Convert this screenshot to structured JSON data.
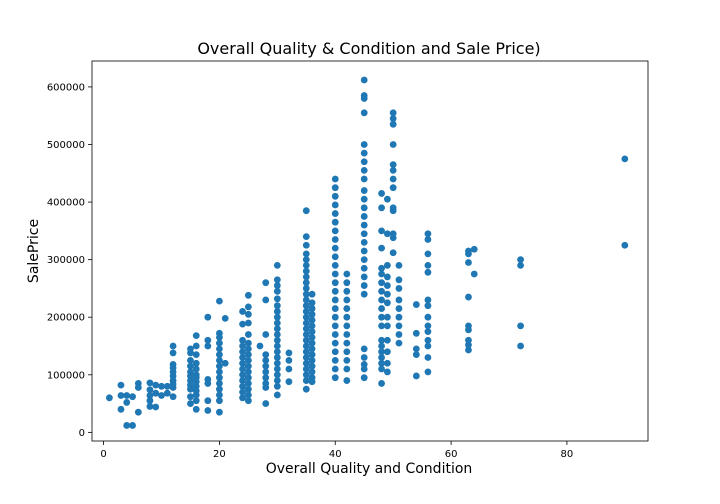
{
  "chart_data": {
    "type": "scatter",
    "title": "Overall Quality & Condition and Sale Price)",
    "xlabel": "Overall Quality and Condition",
    "ylabel": "SalePrice",
    "xlim": [
      -2,
      94
    ],
    "ylim": [
      -15000,
      645000
    ],
    "xticks": [
      0,
      20,
      40,
      60,
      80
    ],
    "yticks": [
      0,
      100000,
      200000,
      300000,
      400000,
      500000,
      600000
    ],
    "grid": false,
    "color": "#1f77b4",
    "points": [
      [
        1,
        60000
      ],
      [
        3,
        82000
      ],
      [
        3,
        64000
      ],
      [
        3,
        40000
      ],
      [
        4,
        64000
      ],
      [
        4,
        52000
      ],
      [
        4,
        12000
      ],
      [
        5,
        62000
      ],
      [
        5,
        12000
      ],
      [
        6,
        85000
      ],
      [
        6,
        78000
      ],
      [
        6,
        35000
      ],
      [
        8,
        86000
      ],
      [
        8,
        74000
      ],
      [
        8,
        64000
      ],
      [
        8,
        55000
      ],
      [
        8,
        45000
      ],
      [
        9,
        82000
      ],
      [
        9,
        68000
      ],
      [
        9,
        44000
      ],
      [
        10,
        80000
      ],
      [
        10,
        64000
      ],
      [
        11,
        80000
      ],
      [
        11,
        68000
      ],
      [
        12,
        150000
      ],
      [
        12,
        138000
      ],
      [
        12,
        118000
      ],
      [
        12,
        112000
      ],
      [
        12,
        105000
      ],
      [
        12,
        98000
      ],
      [
        12,
        90000
      ],
      [
        12,
        84000
      ],
      [
        12,
        78000
      ],
      [
        12,
        62000
      ],
      [
        15,
        145000
      ],
      [
        15,
        138000
      ],
      [
        15,
        125000
      ],
      [
        15,
        115000
      ],
      [
        15,
        105000
      ],
      [
        15,
        98000
      ],
      [
        15,
        90000
      ],
      [
        15,
        82000
      ],
      [
        15,
        75000
      ],
      [
        15,
        62000
      ],
      [
        15,
        50000
      ],
      [
        16,
        168000
      ],
      [
        16,
        150000
      ],
      [
        16,
        135000
      ],
      [
        16,
        120000
      ],
      [
        16,
        110000
      ],
      [
        16,
        100000
      ],
      [
        16,
        95000
      ],
      [
        16,
        88000
      ],
      [
        16,
        80000
      ],
      [
        16,
        72000
      ],
      [
        16,
        65000
      ],
      [
        16,
        55000
      ],
      [
        16,
        40000
      ],
      [
        18,
        200000
      ],
      [
        18,
        160000
      ],
      [
        18,
        150000
      ],
      [
        18,
        92000
      ],
      [
        18,
        85000
      ],
      [
        18,
        55000
      ],
      [
        18,
        38000
      ],
      [
        20,
        228000
      ],
      [
        20,
        172000
      ],
      [
        20,
        165000
      ],
      [
        20,
        155000
      ],
      [
        20,
        145000
      ],
      [
        20,
        135000
      ],
      [
        20,
        125000
      ],
      [
        20,
        115000
      ],
      [
        20,
        105000
      ],
      [
        20,
        95000
      ],
      [
        20,
        85000
      ],
      [
        20,
        75000
      ],
      [
        20,
        65000
      ],
      [
        20,
        55000
      ],
      [
        20,
        35000
      ],
      [
        21,
        198000
      ],
      [
        21,
        120000
      ],
      [
        24,
        210000
      ],
      [
        24,
        188000
      ],
      [
        24,
        160000
      ],
      [
        24,
        150000
      ],
      [
        24,
        140000
      ],
      [
        24,
        130000
      ],
      [
        24,
        120000
      ],
      [
        24,
        110000
      ],
      [
        24,
        100000
      ],
      [
        24,
        90000
      ],
      [
        24,
        80000
      ],
      [
        24,
        70000
      ],
      [
        24,
        60000
      ],
      [
        25,
        238000
      ],
      [
        25,
        218000
      ],
      [
        25,
        205000
      ],
      [
        25,
        190000
      ],
      [
        25,
        170000
      ],
      [
        25,
        155000
      ],
      [
        25,
        145000
      ],
      [
        25,
        135000
      ],
      [
        25,
        125000
      ],
      [
        25,
        115000
      ],
      [
        25,
        105000
      ],
      [
        25,
        95000
      ],
      [
        25,
        85000
      ],
      [
        25,
        75000
      ],
      [
        25,
        65000
      ],
      [
        25,
        55000
      ],
      [
        27,
        150000
      ],
      [
        28,
        260000
      ],
      [
        28,
        230000
      ],
      [
        28,
        170000
      ],
      [
        28,
        135000
      ],
      [
        28,
        125000
      ],
      [
        28,
        115000
      ],
      [
        28,
        105000
      ],
      [
        28,
        95000
      ],
      [
        28,
        85000
      ],
      [
        28,
        78000
      ],
      [
        28,
        50000
      ],
      [
        30,
        290000
      ],
      [
        30,
        265000
      ],
      [
        30,
        255000
      ],
      [
        30,
        245000
      ],
      [
        30,
        232000
      ],
      [
        30,
        220000
      ],
      [
        30,
        210000
      ],
      [
        30,
        200000
      ],
      [
        30,
        190000
      ],
      [
        30,
        180000
      ],
      [
        30,
        170000
      ],
      [
        30,
        160000
      ],
      [
        30,
        150000
      ],
      [
        30,
        140000
      ],
      [
        30,
        130000
      ],
      [
        30,
        120000
      ],
      [
        30,
        110000
      ],
      [
        30,
        100000
      ],
      [
        30,
        90000
      ],
      [
        30,
        80000
      ],
      [
        30,
        65000
      ],
      [
        32,
        138000
      ],
      [
        32,
        125000
      ],
      [
        32,
        110000
      ],
      [
        32,
        88000
      ],
      [
        35,
        385000
      ],
      [
        35,
        340000
      ],
      [
        35,
        325000
      ],
      [
        35,
        310000
      ],
      [
        35,
        300000
      ],
      [
        35,
        290000
      ],
      [
        35,
        280000
      ],
      [
        35,
        270000
      ],
      [
        35,
        260000
      ],
      [
        35,
        250000
      ],
      [
        35,
        240000
      ],
      [
        35,
        230000
      ],
      [
        35,
        220000
      ],
      [
        35,
        210000
      ],
      [
        35,
        200000
      ],
      [
        35,
        190000
      ],
      [
        35,
        180000
      ],
      [
        35,
        170000
      ],
      [
        35,
        160000
      ],
      [
        35,
        150000
      ],
      [
        35,
        140000
      ],
      [
        35,
        130000
      ],
      [
        35,
        120000
      ],
      [
        35,
        110000
      ],
      [
        35,
        100000
      ],
      [
        35,
        90000
      ],
      [
        35,
        75000
      ],
      [
        36,
        240000
      ],
      [
        36,
        225000
      ],
      [
        36,
        215000
      ],
      [
        36,
        205000
      ],
      [
        36,
        195000
      ],
      [
        36,
        185000
      ],
      [
        36,
        175000
      ],
      [
        36,
        165000
      ],
      [
        36,
        155000
      ],
      [
        36,
        145000
      ],
      [
        36,
        135000
      ],
      [
        36,
        125000
      ],
      [
        36,
        115000
      ],
      [
        36,
        105000
      ],
      [
        36,
        95000
      ],
      [
        36,
        88000
      ],
      [
        40,
        440000
      ],
      [
        40,
        425000
      ],
      [
        40,
        410000
      ],
      [
        40,
        395000
      ],
      [
        40,
        380000
      ],
      [
        40,
        365000
      ],
      [
        40,
        350000
      ],
      [
        40,
        335000
      ],
      [
        40,
        320000
      ],
      [
        40,
        305000
      ],
      [
        40,
        290000
      ],
      [
        40,
        275000
      ],
      [
        40,
        260000
      ],
      [
        40,
        245000
      ],
      [
        40,
        230000
      ],
      [
        40,
        215000
      ],
      [
        40,
        200000
      ],
      [
        40,
        185000
      ],
      [
        40,
        170000
      ],
      [
        40,
        155000
      ],
      [
        40,
        140000
      ],
      [
        40,
        125000
      ],
      [
        40,
        110000
      ],
      [
        40,
        95000
      ],
      [
        42,
        275000
      ],
      [
        42,
        260000
      ],
      [
        42,
        245000
      ],
      [
        42,
        230000
      ],
      [
        42,
        215000
      ],
      [
        42,
        200000
      ],
      [
        42,
        185000
      ],
      [
        42,
        170000
      ],
      [
        42,
        155000
      ],
      [
        42,
        140000
      ],
      [
        42,
        125000
      ],
      [
        42,
        110000
      ],
      [
        42,
        90000
      ],
      [
        45,
        612000
      ],
      [
        45,
        585000
      ],
      [
        45,
        580000
      ],
      [
        45,
        555000
      ],
      [
        45,
        500000
      ],
      [
        45,
        485000
      ],
      [
        45,
        470000
      ],
      [
        45,
        455000
      ],
      [
        45,
        440000
      ],
      [
        45,
        420000
      ],
      [
        45,
        405000
      ],
      [
        45,
        390000
      ],
      [
        45,
        375000
      ],
      [
        45,
        360000
      ],
      [
        45,
        345000
      ],
      [
        45,
        330000
      ],
      [
        45,
        315000
      ],
      [
        45,
        300000
      ],
      [
        45,
        285000
      ],
      [
        45,
        270000
      ],
      [
        45,
        255000
      ],
      [
        45,
        240000
      ],
      [
        45,
        145000
      ],
      [
        45,
        130000
      ],
      [
        45,
        118000
      ],
      [
        45,
        110000
      ],
      [
        45,
        95000
      ],
      [
        48,
        415000
      ],
      [
        48,
        390000
      ],
      [
        48,
        350000
      ],
      [
        48,
        320000
      ],
      [
        48,
        285000
      ],
      [
        48,
        275000
      ],
      [
        48,
        260000
      ],
      [
        48,
        245000
      ],
      [
        48,
        230000
      ],
      [
        48,
        215000
      ],
      [
        48,
        200000
      ],
      [
        48,
        185000
      ],
      [
        48,
        160000
      ],
      [
        48,
        150000
      ],
      [
        48,
        140000
      ],
      [
        48,
        130000
      ],
      [
        48,
        120000
      ],
      [
        48,
        110000
      ],
      [
        48,
        85000
      ],
      [
        49,
        405000
      ],
      [
        49,
        345000
      ],
      [
        49,
        290000
      ],
      [
        49,
        270000
      ],
      [
        49,
        255000
      ],
      [
        49,
        240000
      ],
      [
        49,
        225000
      ],
      [
        49,
        200000
      ],
      [
        49,
        185000
      ],
      [
        49,
        160000
      ],
      [
        49,
        140000
      ],
      [
        49,
        120000
      ],
      [
        49,
        105000
      ],
      [
        50,
        555000
      ],
      [
        50,
        545000
      ],
      [
        50,
        535000
      ],
      [
        50,
        500000
      ],
      [
        50,
        465000
      ],
      [
        50,
        455000
      ],
      [
        50,
        440000
      ],
      [
        50,
        425000
      ],
      [
        50,
        390000
      ],
      [
        50,
        385000
      ],
      [
        50,
        345000
      ],
      [
        50,
        338000
      ],
      [
        50,
        312000
      ],
      [
        51,
        290000
      ],
      [
        51,
        265000
      ],
      [
        51,
        250000
      ],
      [
        51,
        230000
      ],
      [
        51,
        215000
      ],
      [
        51,
        200000
      ],
      [
        51,
        185000
      ],
      [
        51,
        170000
      ],
      [
        51,
        155000
      ],
      [
        54,
        222000
      ],
      [
        54,
        172000
      ],
      [
        54,
        145000
      ],
      [
        54,
        135000
      ],
      [
        54,
        98000
      ],
      [
        56,
        345000
      ],
      [
        56,
        335000
      ],
      [
        56,
        310000
      ],
      [
        56,
        290000
      ],
      [
        56,
        278000
      ],
      [
        56,
        230000
      ],
      [
        56,
        220000
      ],
      [
        56,
        200000
      ],
      [
        56,
        185000
      ],
      [
        56,
        175000
      ],
      [
        56,
        160000
      ],
      [
        56,
        150000
      ],
      [
        56,
        130000
      ],
      [
        56,
        105000
      ],
      [
        63,
        315000
      ],
      [
        63,
        310000
      ],
      [
        63,
        295000
      ],
      [
        63,
        235000
      ],
      [
        63,
        185000
      ],
      [
        63,
        178000
      ],
      [
        63,
        160000
      ],
      [
        63,
        152000
      ],
      [
        63,
        143000
      ],
      [
        64,
        318000
      ],
      [
        64,
        275000
      ],
      [
        72,
        300000
      ],
      [
        72,
        290000
      ],
      [
        72,
        185000
      ],
      [
        72,
        150000
      ],
      [
        90,
        475000
      ],
      [
        90,
        325000
      ]
    ]
  }
}
